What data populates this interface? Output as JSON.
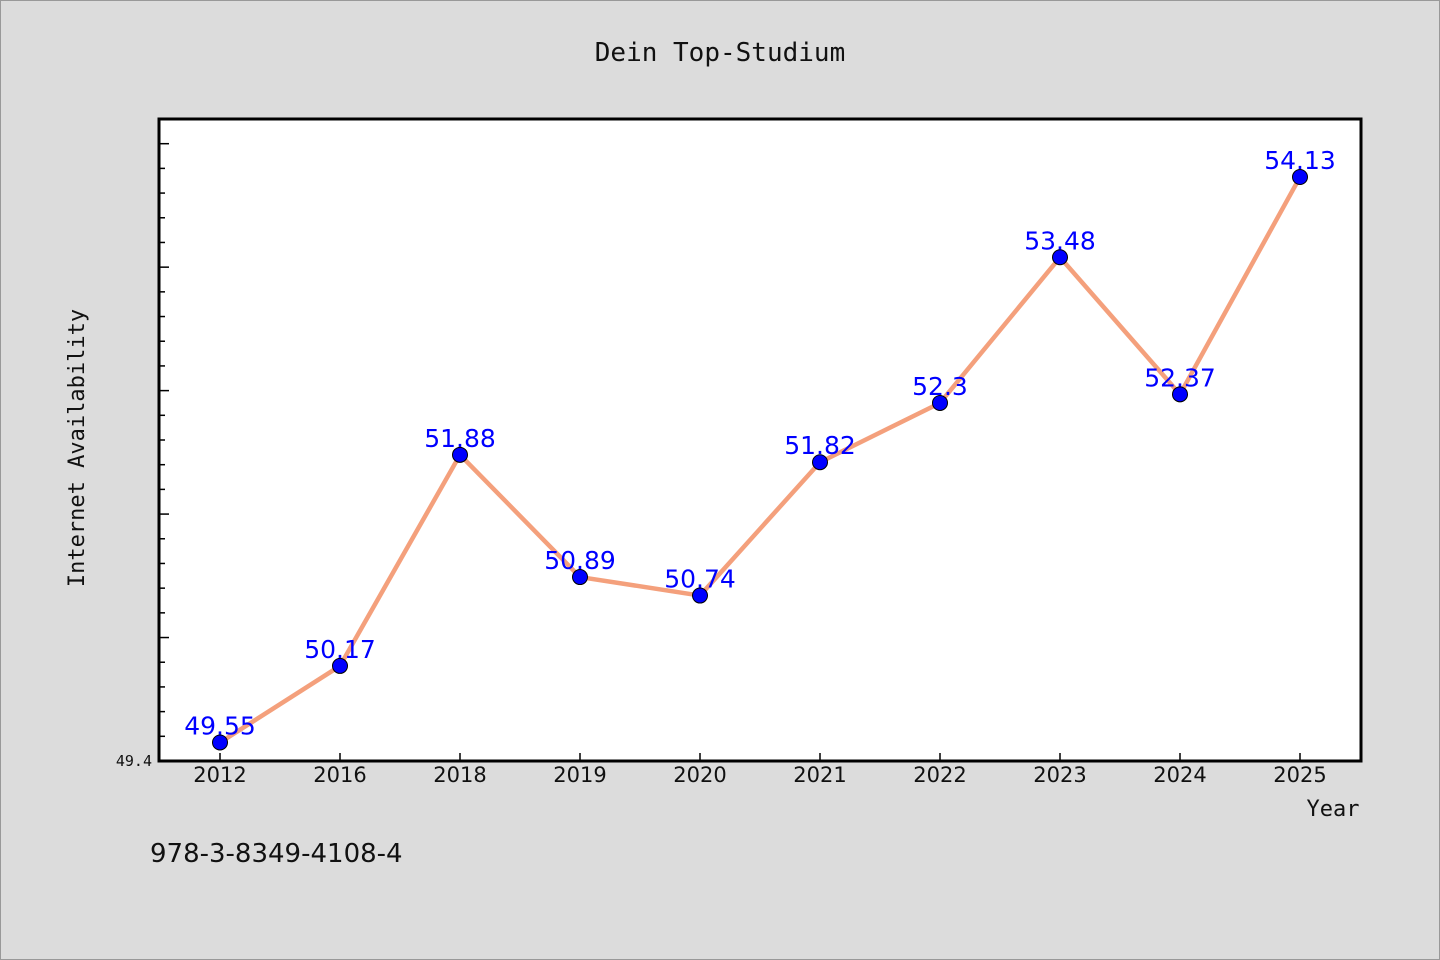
{
  "chart_data": {
    "type": "line",
    "title": "Dein Top-Studium",
    "xlabel": "Year",
    "ylabel": "Internet Availability",
    "categories": [
      "2012",
      "2016",
      "2018",
      "2019",
      "2020",
      "2021",
      "2022",
      "2023",
      "2024",
      "2025"
    ],
    "series": [
      {
        "values": [
          49.55,
          50.17,
          51.88,
          50.89,
          50.74,
          51.82,
          52.3,
          53.48,
          52.37,
          54.13
        ],
        "data_labels": [
          "49.55",
          "50.17",
          "51.88",
          "50.89",
          "50.74",
          "51.82",
          "52.3",
          "53.48",
          "52.37",
          "54.13"
        ]
      }
    ],
    "ylim": [
      49.4,
      54.6
    ],
    "y_tick_labels": [
      "49.4"
    ],
    "line_color": "#f4a07c",
    "marker_color": "#0000ff",
    "label_color": "#0000ff",
    "grid": false,
    "legend": "none"
  },
  "footer": {
    "text": "978-3-8349-4108-4"
  }
}
